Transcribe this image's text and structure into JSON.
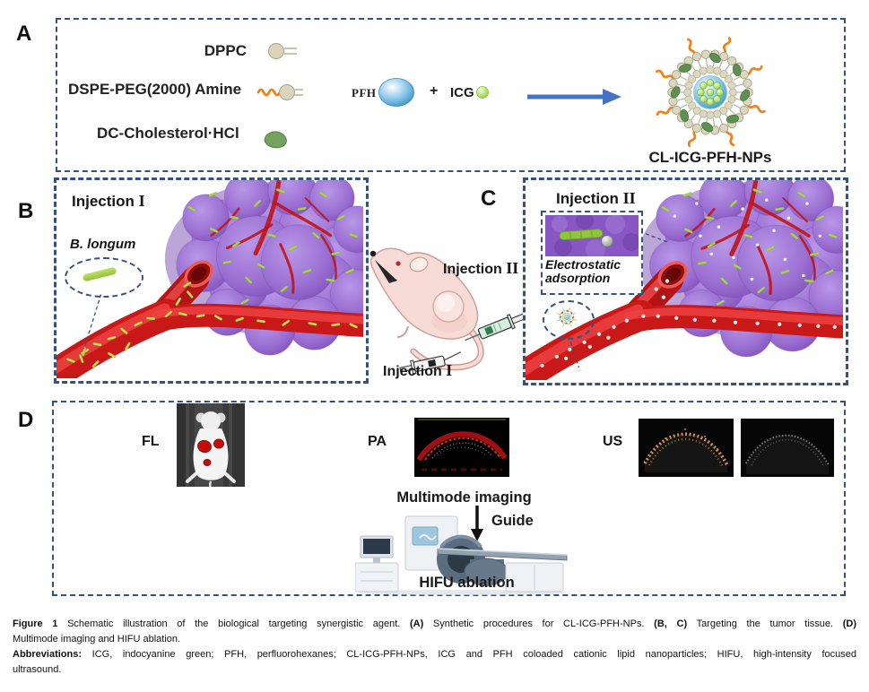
{
  "colors": {
    "panel_border": "#35517e",
    "arrow_blue": "#4472c4",
    "tumor_purple": "#9a6fd2",
    "vessel_red": "#c81818",
    "bacteria_green": "#a6d44c",
    "peg_orange": "#f08018"
  },
  "panel_a": {
    "letter": "A",
    "components": [
      {
        "name": "DPPC",
        "icon": "lipid-dppc-icon"
      },
      {
        "name": "DSPE-PEG(2000) Amine",
        "icon": "lipid-peg-icon"
      },
      {
        "name": "DC-Cholesterol·HCl",
        "icon": "cholesterol-icon"
      }
    ],
    "pfh_label": "PFH",
    "plus_sign": "+",
    "icg_label": "ICG",
    "product_label": "CL-ICG-PFH-NPs"
  },
  "panel_b": {
    "letter": "B",
    "injection_word": "Injection",
    "injection_numeral": "I",
    "bacterium_label": "B. longum"
  },
  "middle": {
    "letter_c": "C",
    "injection2_word": "Injection",
    "injection2_numeral": "II",
    "injection1_word": "Injection",
    "injection1_numeral": "I"
  },
  "panel_c": {
    "injection_word": "Injection",
    "injection_numeral": "II",
    "inset_caption": "Electrostatic adsorption"
  },
  "panel_d": {
    "letter": "D",
    "fl_label": "FL",
    "pa_label": "PA",
    "us_label": "US",
    "multimode_label": "Multimode imaging",
    "guide_label": "Guide",
    "hifu_label": "HIFU ablation"
  },
  "caption": {
    "figure_label": "Figure 1",
    "intro": " Schematic illustration of the biological targeting synergistic agent. ",
    "a_label": "(A)",
    "a_text": " Synthetic procedures for CL-ICG-PFH-NPs. ",
    "bc_label": "(B, C)",
    "bc_text": " Targeting the tumor tissue. ",
    "d_label": "(D)",
    "line2": "Multimode imaging and HIFU ablation.",
    "abbr_label": "Abbreviations:",
    "abbr_line1": " ICG, indocyanine green; PFH, perfluorohexanes; CL-ICG-PFH-NPs, ICG and PFH coloaded cationic lipid nanoparticles; HIFU, high-intensity focused",
    "abbr_line2": "ultrasound."
  }
}
